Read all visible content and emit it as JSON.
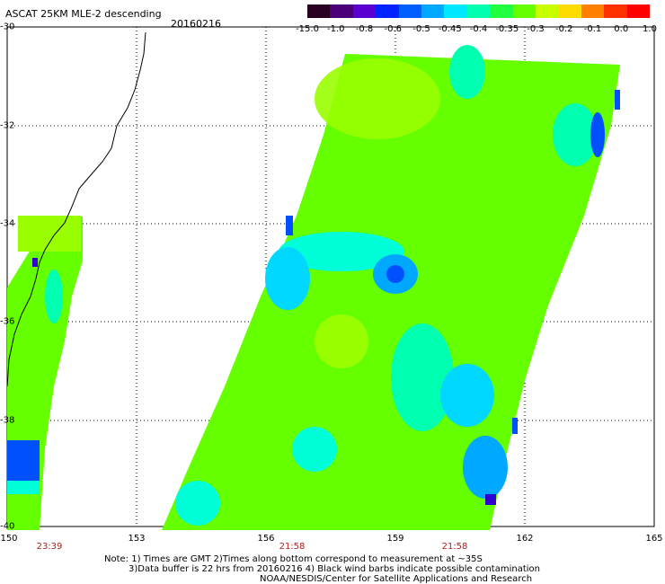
{
  "title": "ASCAT 25KM MLE-2 descending",
  "date": "20160216",
  "colorbar": {
    "labels": [
      "-15.0",
      "-1.0",
      "-0.8",
      "-0.6",
      "-0.5",
      "-0.45",
      "-0.4",
      "-0.35",
      "-0.3",
      "-0.2",
      "-0.1",
      "0.0",
      "1.0"
    ],
    "colors": [
      "#2a0020",
      "#4b007a",
      "#5a00d0",
      "#0022ff",
      "#0060ff",
      "#00a8ff",
      "#00e8ff",
      "#00ffb0",
      "#20ff40",
      "#66ff00",
      "#c8ff00",
      "#ffdc00",
      "#ff8000",
      "#ff3000",
      "#ff0000"
    ]
  },
  "axes": {
    "lat_labels": [
      "-30",
      "-32",
      "-34",
      "-36",
      "-38",
      "-40"
    ],
    "lon_labels": [
      "150",
      "153",
      "156",
      "159",
      "162",
      "165"
    ]
  },
  "swath_times": [
    "23:39",
    "21:58",
    "21:58"
  ],
  "notes": [
    "Note: 1) Times are GMT 2)Times along bottom correspond to measurement at ~35S",
    "3)Data buffer is 22 hrs from 20160216 4) Black wind barbs indicate possible contamination",
    "NOAA/NESDIS/Center for Satellite Applications and Research"
  ],
  "palette": {
    "green": "#66ff00",
    "yellow_green": "#99ff00",
    "cyan": "#00ffd8",
    "blue": "#0050ff",
    "deep_blue": "#3000d0"
  }
}
